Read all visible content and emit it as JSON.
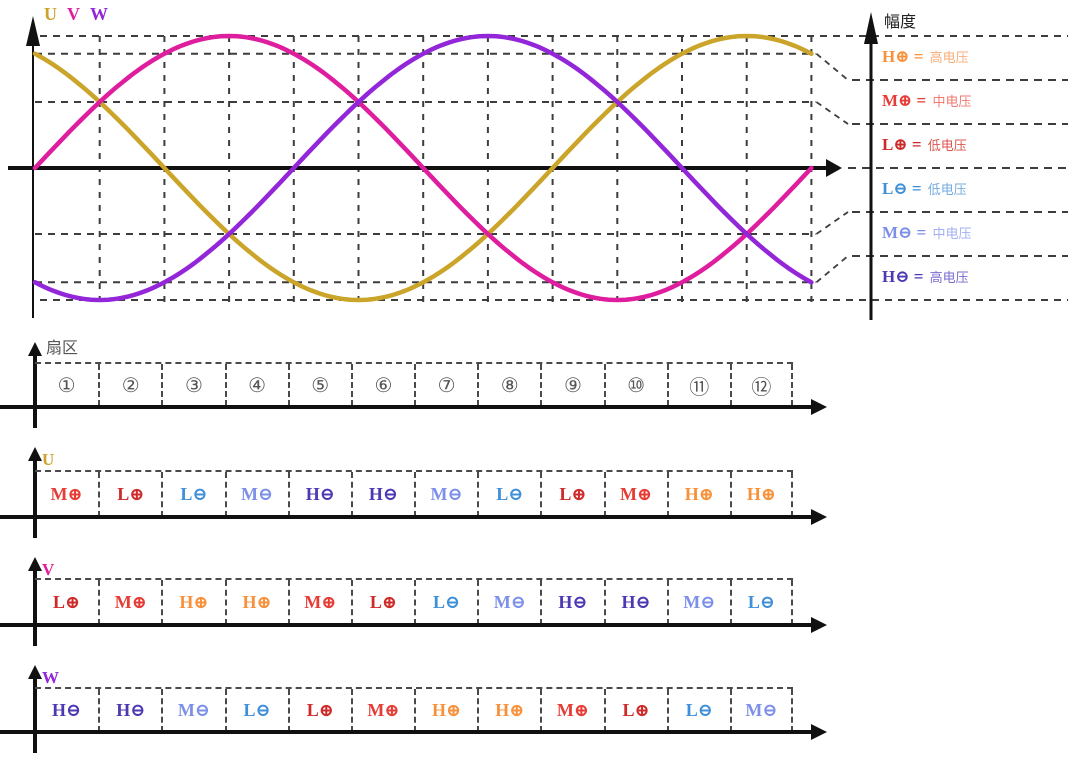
{
  "title_parts": [
    "U",
    "V",
    "W"
  ],
  "colors": {
    "phases": {
      "U": "#CBA42A",
      "V": "#DE1E9E",
      "W": "#9326D9"
    },
    "levels": {
      "H⊕": "#F8913C",
      "M⊕": "#E73C35",
      "L⊕": "#CF2A2A",
      "L⊖": "#3F90D8",
      "M⊖": "#7D90E8",
      "H⊖": "#4C38B2"
    },
    "level_names": {
      "H⊕": "#FAAE78",
      "M⊕": "#F17A70",
      "L⊕": "#DC5550",
      "L⊖": "#74ABDF",
      "M⊖": "#A3AFF0",
      "H⊖": "#7A6CCE"
    },
    "grid": "#3d3d3d",
    "axis": "#111111",
    "sector_number": "#555555"
  },
  "legend": {
    "axis_label": "幅度",
    "entries": [
      {
        "symbol": "H⊕",
        "name": "高电压"
      },
      {
        "symbol": "M⊕",
        "name": "中电压"
      },
      {
        "symbol": "L⊕",
        "name": "低电压"
      },
      {
        "symbol": "L⊖",
        "name": "低电压"
      },
      {
        "symbol": "M⊖",
        "name": "中电压"
      },
      {
        "symbol": "H⊖",
        "name": "高电压"
      }
    ]
  },
  "sector_row": {
    "label": "扇区",
    "numbers": [
      "①",
      "②",
      "③",
      "④",
      "⑤",
      "⑥",
      "⑦",
      "⑧",
      "⑨",
      "⑩",
      "⑪",
      "⑫"
    ]
  },
  "phase_rows": [
    {
      "phase": "U",
      "cells": [
        "M⊕",
        "L⊕",
        "L⊖",
        "M⊖",
        "H⊖",
        "H⊖",
        "M⊖",
        "L⊖",
        "L⊕",
        "M⊕",
        "H⊕",
        "H⊕"
      ]
    },
    {
      "phase": "V",
      "cells": [
        "L⊕",
        "M⊕",
        "H⊕",
        "H⊕",
        "M⊕",
        "L⊕",
        "L⊖",
        "M⊖",
        "H⊖",
        "H⊖",
        "M⊖",
        "L⊖"
      ]
    },
    {
      "phase": "W",
      "cells": [
        "H⊖",
        "H⊖",
        "M⊖",
        "L⊖",
        "L⊕",
        "M⊕",
        "H⊕",
        "H⊕",
        "M⊕",
        "L⊕",
        "L⊖",
        "M⊖"
      ]
    }
  ],
  "chart_data": {
    "type": "line",
    "x_unit": "degrees",
    "x_range": [
      0,
      360
    ],
    "sector_count": 12,
    "y_axis_label": "幅度",
    "y_range": [
      -1,
      1
    ],
    "h_gridlines": [
      1,
      0.866,
      0.5,
      0,
      -0.5,
      -0.866,
      -1
    ],
    "series": [
      {
        "name": "U",
        "amplitude": 1,
        "phase_deg": 120
      },
      {
        "name": "V",
        "amplitude": 1,
        "phase_deg": 0
      },
      {
        "name": "W",
        "amplitude": 1,
        "phase_deg": -120
      }
    ],
    "voltage_bands": [
      {
        "symbol": "H⊕",
        "label": "高电压",
        "range": [
          0.866,
          1
        ]
      },
      {
        "symbol": "M⊕",
        "label": "中电压",
        "range": [
          0.5,
          0.866
        ]
      },
      {
        "symbol": "L⊕",
        "label": "低电压",
        "range": [
          0,
          0.5
        ]
      },
      {
        "symbol": "L⊖",
        "label": "低电压",
        "range": [
          -0.5,
          0
        ]
      },
      {
        "symbol": "M⊖",
        "label": "中电压",
        "range": [
          -0.866,
          -0.5
        ]
      },
      {
        "symbol": "H⊖",
        "label": "高电压",
        "range": [
          -1,
          -0.866
        ]
      }
    ]
  }
}
